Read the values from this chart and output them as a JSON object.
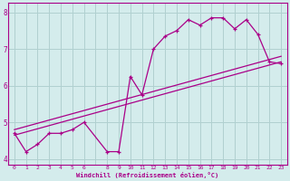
{
  "xlabel": "Windchill (Refroidissement éolien,°C)",
  "bg_color": "#d4ecec",
  "grid_color": "#b0d0d0",
  "line_color": "#aa0088",
  "hours": [
    0,
    1,
    2,
    3,
    4,
    5,
    6,
    8,
    9,
    10,
    11,
    12,
    13,
    14,
    15,
    16,
    17,
    18,
    19,
    20,
    21,
    22,
    23
  ],
  "values": [
    4.7,
    4.2,
    4.4,
    4.7,
    4.7,
    4.8,
    5.0,
    4.2,
    4.2,
    6.25,
    5.75,
    7.0,
    7.35,
    7.5,
    7.8,
    7.65,
    7.85,
    7.85,
    7.55,
    7.8,
    7.4,
    6.65,
    6.6
  ],
  "trend1_x": [
    0,
    23
  ],
  "trend1_y": [
    4.65,
    6.65
  ],
  "trend2_x": [
    0,
    23
  ],
  "trend2_y": [
    4.8,
    6.8
  ],
  "xlim": [
    -0.5,
    23.5
  ],
  "ylim": [
    3.85,
    8.25
  ],
  "yticks": [
    4,
    5,
    6,
    7,
    8
  ],
  "figsize": [
    3.2,
    2.0
  ],
  "dpi": 100
}
